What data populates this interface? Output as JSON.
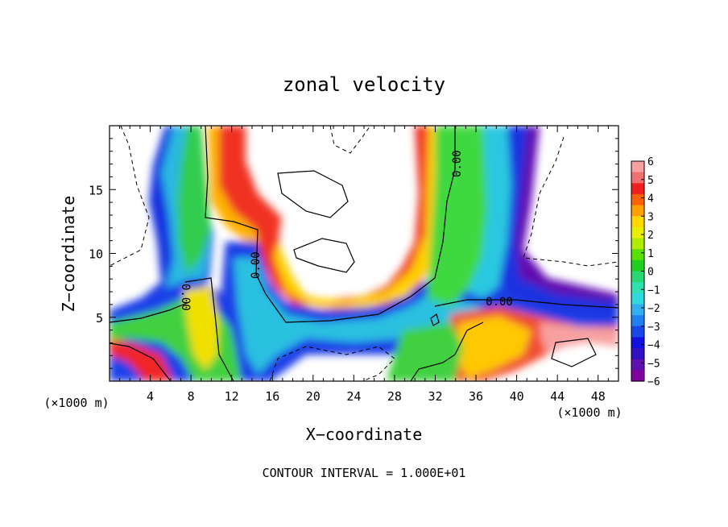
{
  "chart_data": {
    "type": "heatmap",
    "title": "zonal velocity",
    "xlabel": "X−coordinate",
    "ylabel": "Z−coordinate",
    "x_unit_label": "(×1000 m)",
    "x_unit_label_right": "(×1000 m)",
    "xlim": [
      0,
      50
    ],
    "ylim": [
      0,
      20
    ],
    "x_ticks": [
      4,
      8,
      12,
      16,
      20,
      24,
      28,
      32,
      36,
      40,
      44,
      48
    ],
    "x_tick_labels": [
      "4",
      "8",
      "12",
      "16",
      "20",
      "24",
      "28",
      "32",
      "36",
      "40",
      "44",
      "48"
    ],
    "y_ticks": [
      5,
      10,
      15
    ],
    "y_tick_labels": [
      "5",
      "10",
      "15"
    ],
    "colorbar": {
      "range": [
        -6,
        6
      ],
      "tick_labels": [
        "6",
        "5",
        "4",
        "3",
        "2",
        "1",
        "0",
        "−1",
        "−2",
        "−3",
        "−4",
        "−5",
        "−6"
      ],
      "colors": [
        "#f8a0a0",
        "#f07070",
        "#f02020",
        "#ff6000",
        "#ffa000",
        "#ffd800",
        "#e8f000",
        "#b0ec00",
        "#58e000",
        "#20d020",
        "#28d870",
        "#30e0b0",
        "#30d8e0",
        "#30b0f0",
        "#2080f0",
        "#1848e8",
        "#1010e0",
        "#3010c0",
        "#6010b0",
        "#8000a0"
      ]
    },
    "contour_labels": [
      "0.00",
      "0.00",
      "0.00",
      "0.00"
    ],
    "footer": "CONTOUR INTERVAL =  1.000E+01"
  }
}
